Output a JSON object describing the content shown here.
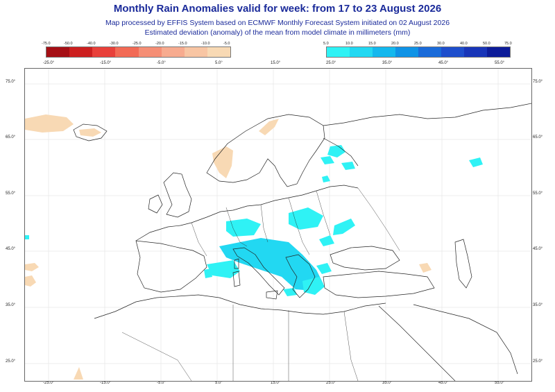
{
  "title": "Monthly Rain Anomalies valid for week: from 17 to 23 August 2026",
  "subtitle1": "Map processed by EFFIS System based on ECMWF Monthly Forecast System initiated on 02 August 2026",
  "subtitle2": "Estimated deviation (anomaly) of the mean from model climate in millimeters (mm)",
  "legend_negative": {
    "labels": [
      "-75.0",
      "-50.0",
      "-40.0",
      "-30.0",
      "-25.0",
      "-20.0",
      "-15.0",
      "-10.0",
      "-5.0"
    ],
    "colors": [
      "#a50f15",
      "#cc1f1f",
      "#e8403a",
      "#f26a55",
      "#f58e75",
      "#f7ab8f",
      "#f8c5a3",
      "#f8d9b4"
    ]
  },
  "legend_positive": {
    "labels": [
      "5.0",
      "10.0",
      "15.0",
      "20.0",
      "25.0",
      "30.0",
      "40.0",
      "50.0",
      "75.0"
    ],
    "colors": [
      "#2ff2f5",
      "#22d8f2",
      "#14b8ee",
      "#0f93e6",
      "#1a6bd9",
      "#1e4ecc",
      "#1835b8",
      "#0d1c99"
    ]
  },
  "lon_labels": [
    "-25.0°",
    "-15.0°",
    "-5.0°",
    "5.0°",
    "15.0°",
    "25.0°",
    "35.0°",
    "45.0°",
    "55.0°"
  ],
  "lat_labels": [
    "75.0°",
    "65.0°",
    "55.0°",
    "45.0°",
    "35.0°",
    "25.0°"
  ]
}
